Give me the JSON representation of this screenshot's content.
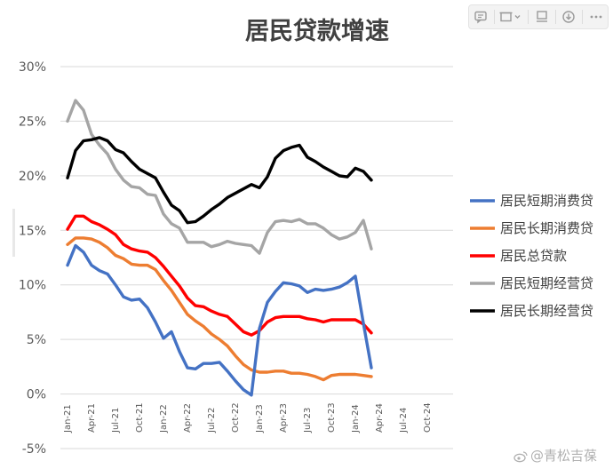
{
  "chart_data": {
    "type": "line",
    "title": "居民贷款增速",
    "ylim": [
      -5,
      30
    ],
    "yticks": [
      "-5%",
      "0%",
      "5%",
      "10%",
      "15%",
      "20%",
      "25%",
      "30%"
    ],
    "ytick_values": [
      -5,
      0,
      5,
      10,
      15,
      20,
      25,
      30
    ],
    "x_range": [
      "Jan-21",
      "Dec-24"
    ],
    "xtick_labels": [
      "Jan-21",
      "Apr-21",
      "Jul-21",
      "Oct-21",
      "Jan-22",
      "Apr-22",
      "Jul-22",
      "Oct-22",
      "Jan-23",
      "Apr-23",
      "Jul-23",
      "Oct-23",
      "Jan-24",
      "Apr-24",
      "Jul-24",
      "Oct-24"
    ],
    "x": [
      "2021-01",
      "2021-02",
      "2021-03",
      "2021-04",
      "2021-05",
      "2021-06",
      "2021-07",
      "2021-08",
      "2021-09",
      "2021-10",
      "2021-11",
      "2021-12",
      "2022-01",
      "2022-02",
      "2022-03",
      "2022-04",
      "2022-05",
      "2022-06",
      "2022-07",
      "2022-08",
      "2022-09",
      "2022-10",
      "2022-11",
      "2022-12",
      "2023-01",
      "2023-02",
      "2023-03",
      "2023-04",
      "2023-05",
      "2023-06",
      "2023-07",
      "2023-08",
      "2023-09",
      "2023-10",
      "2023-11",
      "2023-12",
      "2024-01",
      "2024-02",
      "2024-03"
    ],
    "grid": true,
    "legend_position": "right",
    "series": [
      {
        "name": "居民短期消费贷",
        "color": "#4472c4",
        "values": [
          11.8,
          13.6,
          13.0,
          11.8,
          11.3,
          11.0,
          10.0,
          8.9,
          8.6,
          8.7,
          7.9,
          6.6,
          5.1,
          5.7,
          3.9,
          2.4,
          2.3,
          2.8,
          2.8,
          2.9,
          2.1,
          1.2,
          0.4,
          -0.1,
          6.0,
          8.4,
          9.4,
          10.2,
          10.1,
          9.9,
          9.3,
          9.6,
          9.5,
          9.6,
          9.8,
          10.2,
          10.8,
          6.5,
          2.4
        ]
      },
      {
        "name": "居民长期消费贷",
        "color": "#ed7d31",
        "values": [
          13.7,
          14.3,
          14.3,
          14.2,
          13.9,
          13.4,
          12.7,
          12.4,
          11.9,
          11.8,
          11.8,
          11.4,
          10.4,
          9.5,
          8.4,
          7.3,
          6.7,
          6.2,
          5.5,
          5.0,
          4.4,
          3.5,
          2.7,
          2.2,
          2.0,
          2.0,
          2.1,
          2.1,
          1.9,
          1.9,
          1.8,
          1.6,
          1.3,
          1.7,
          1.8,
          1.8,
          1.8,
          1.7,
          1.6
        ]
      },
      {
        "name": "居民总贷款",
        "color": "#ff0000",
        "values": [
          15.1,
          16.3,
          16.3,
          15.8,
          15.5,
          15.1,
          14.6,
          13.7,
          13.3,
          13.1,
          13.0,
          12.5,
          11.7,
          10.8,
          9.9,
          8.8,
          8.1,
          8.0,
          7.6,
          7.3,
          7.1,
          6.4,
          5.7,
          5.4,
          5.8,
          6.6,
          7.0,
          7.1,
          7.1,
          7.1,
          6.9,
          6.8,
          6.6,
          6.8,
          6.8,
          6.8,
          6.8,
          6.4,
          5.6
        ]
      },
      {
        "name": "居民短期经营贷",
        "color": "#a5a5a5",
        "values": [
          25.0,
          26.9,
          26.0,
          23.8,
          22.8,
          22.0,
          20.6,
          19.6,
          19.0,
          18.9,
          18.3,
          18.2,
          16.5,
          15.6,
          15.2,
          13.9,
          13.9,
          13.9,
          13.5,
          13.7,
          14.0,
          13.8,
          13.7,
          13.6,
          12.9,
          14.8,
          15.8,
          15.9,
          15.8,
          16.0,
          15.6,
          15.6,
          15.2,
          14.6,
          14.2,
          14.4,
          14.8,
          15.9,
          13.3
        ]
      },
      {
        "name": "居民长期经营贷",
        "color": "#000000",
        "values": [
          19.8,
          22.3,
          23.2,
          23.3,
          23.5,
          23.2,
          22.4,
          22.1,
          21.3,
          20.6,
          20.2,
          19.8,
          18.5,
          17.3,
          16.8,
          15.7,
          15.8,
          16.3,
          16.9,
          17.4,
          18.0,
          18.4,
          18.8,
          19.2,
          18.9,
          19.9,
          21.6,
          22.3,
          22.6,
          22.8,
          21.7,
          21.3,
          20.8,
          20.4,
          20.0,
          19.9,
          20.7,
          20.4,
          19.6
        ]
      }
    ]
  },
  "toolbar": {
    "buttons": [
      {
        "name": "comment-button",
        "icon": "comment-icon"
      },
      {
        "name": "frame-button",
        "icon": "frame-icon"
      },
      {
        "name": "screen-button",
        "icon": "screen-icon"
      },
      {
        "name": "download-button",
        "icon": "download-icon"
      },
      {
        "name": "more-button",
        "icon": "more-icon"
      }
    ]
  },
  "watermark": {
    "text": "@青松吉葆",
    "icon": "weibo-icon"
  }
}
